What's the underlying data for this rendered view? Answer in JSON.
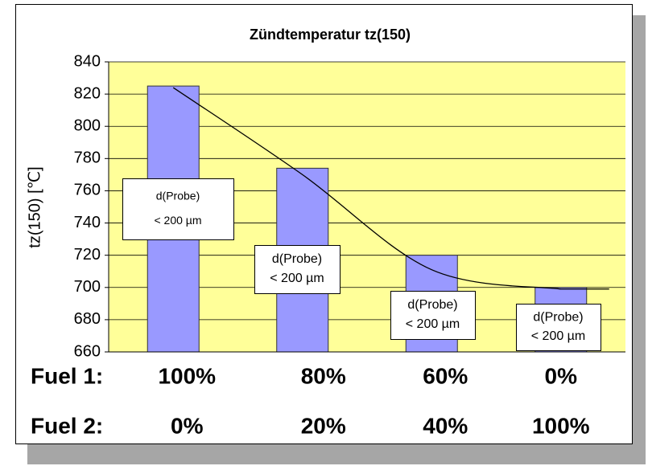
{
  "chart_data": {
    "type": "bar",
    "title": "Zündtemperatur tz(150)",
    "y_label": "tz(150)  [℃]",
    "row_labels": [
      "Fuel 1:",
      "Fuel 2:"
    ],
    "categories": [
      "100%",
      "80%",
      "60%",
      "0%"
    ],
    "categories2": [
      "0%",
      "20%",
      "40%",
      "100%"
    ],
    "values": [
      825,
      774,
      720,
      700
    ],
    "trendline": [
      824,
      770,
      711,
      699
    ],
    "color": "#9999ff",
    "background": "#ffff99",
    "ylim": [
      660,
      840
    ],
    "yticks": [
      660,
      680,
      700,
      720,
      740,
      760,
      780,
      800,
      820,
      840
    ],
    "grid": true,
    "annotations": [
      [
        "d(Probe)",
        "< 200 µm"
      ],
      [
        "d(Probe)",
        "< 200 µm"
      ],
      [
        "d(Probe)",
        "< 200 µm"
      ],
      [
        "d(Probe)",
        "< 200 µm"
      ]
    ]
  }
}
